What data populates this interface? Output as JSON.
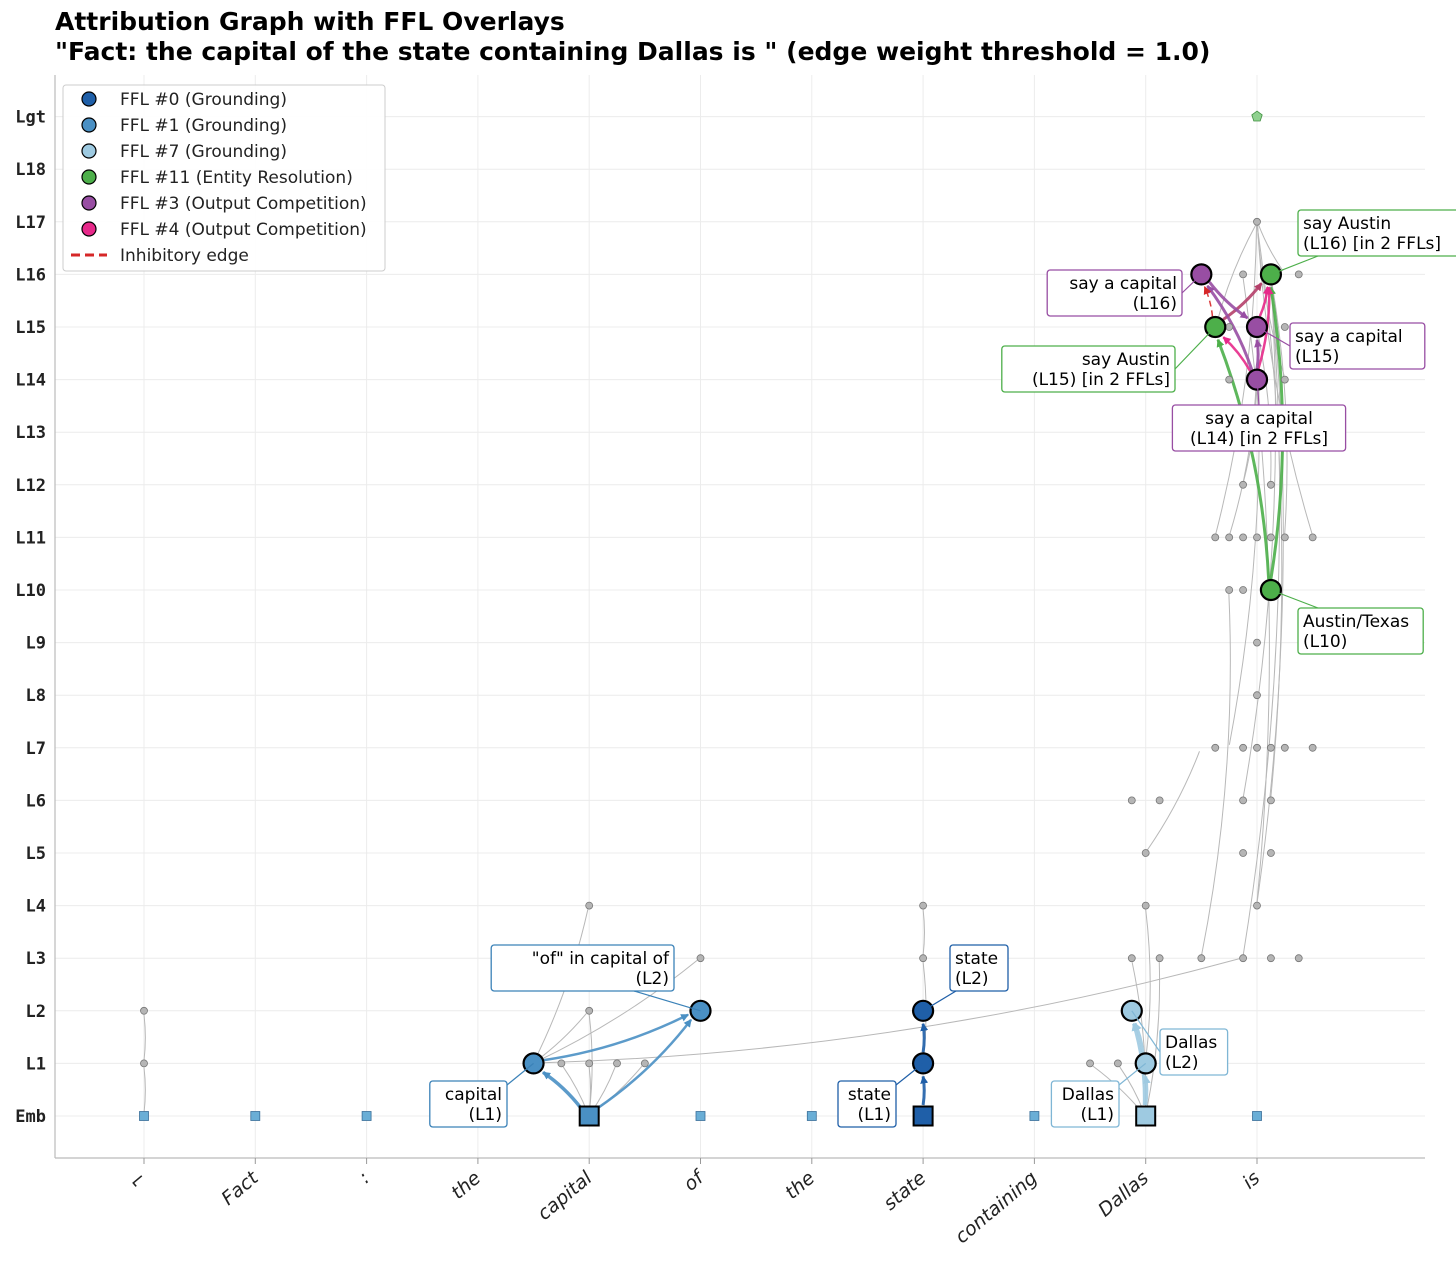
{
  "title_line1": "Attribution Graph with FFL Overlays",
  "title_line2": "\"Fact: the capital of the state containing Dallas is \"    (edge weight threshold = 1.0)",
  "chart_data": {
    "type": "graph",
    "y_levels": [
      "Emb",
      "L1",
      "L2",
      "L3",
      "L4",
      "L5",
      "L6",
      "L7",
      "L8",
      "L9",
      "L10",
      "L11",
      "L12",
      "L13",
      "L14",
      "L15",
      "L16",
      "L17",
      "L18",
      "Lgt"
    ],
    "tokens": [
      "⌐",
      "Fact",
      ":",
      "the",
      "capital",
      "of",
      "the",
      "state",
      "containing",
      "Dallas",
      "is"
    ],
    "colors": {
      "ffl0": "#1f5fa8",
      "ffl1": "#4a90c4",
      "ffl7": "#9ecae1",
      "ffl11": "#4daf4a",
      "ffl3": "#984ea3",
      "ffl4": "#e7298a",
      "inhib": "#d62728",
      "gray": "#b0b0b0"
    },
    "legend": [
      {
        "label": "FFL #0 (Grounding)",
        "color": "#1f5fa8",
        "kind": "dot"
      },
      {
        "label": "FFL #1 (Grounding)",
        "color": "#4a90c4",
        "kind": "dot"
      },
      {
        "label": "FFL #7 (Grounding)",
        "color": "#9ecae1",
        "kind": "dot"
      },
      {
        "label": "FFL #11 (Entity Resolution)",
        "color": "#4daf4a",
        "kind": "dot"
      },
      {
        "label": "FFL #3 (Output Competition)",
        "color": "#984ea3",
        "kind": "dot"
      },
      {
        "label": "FFL #4 (Output Competition)",
        "color": "#e7298a",
        "kind": "dot"
      },
      {
        "label": "Inhibitory edge",
        "color": "#d62728",
        "kind": "dash"
      }
    ],
    "highlight_nodes": [
      {
        "id": "cap_emb",
        "x": 4,
        "layer": 0,
        "shape": "square",
        "color": "#4a90c4"
      },
      {
        "id": "cap_l1",
        "x": 3.5,
        "layer": 1,
        "color": "#4a90c4"
      },
      {
        "id": "of_l2",
        "x": 5,
        "layer": 2,
        "color": "#4a90c4"
      },
      {
        "id": "st_emb",
        "x": 7,
        "layer": 0,
        "shape": "square",
        "color": "#1f5fa8"
      },
      {
        "id": "st_l1",
        "x": 7,
        "layer": 1,
        "color": "#1f5fa8"
      },
      {
        "id": "st_l2",
        "x": 7,
        "layer": 2,
        "color": "#1f5fa8"
      },
      {
        "id": "da_emb",
        "x": 9,
        "layer": 0,
        "shape": "square",
        "color": "#9ecae1"
      },
      {
        "id": "da_l1",
        "x": 9,
        "layer": 1,
        "color": "#9ecae1"
      },
      {
        "id": "da_l2",
        "x": 8.875,
        "layer": 2,
        "color": "#9ecae1"
      },
      {
        "id": "aus_l10",
        "x": 10.125,
        "layer": 10,
        "color": "#4daf4a"
      },
      {
        "id": "aus_l15",
        "x": 9.625,
        "layer": 15,
        "color": "#4daf4a"
      },
      {
        "id": "aus_l16",
        "x": 10.125,
        "layer": 16,
        "color": "#4daf4a"
      },
      {
        "id": "cap_l14",
        "x": 10,
        "layer": 14,
        "color": "#984ea3"
      },
      {
        "id": "cap_l15",
        "x": 10,
        "layer": 15,
        "color": "#984ea3"
      },
      {
        "id": "cap_l16",
        "x": 9.5,
        "layer": 16,
        "color": "#984ea3"
      }
    ],
    "highlight_edges": [
      {
        "from": "cap_emb",
        "to": "cap_l1",
        "color": "#4a90c4",
        "w": 3.5
      },
      {
        "from": "cap_emb",
        "to": "of_l2",
        "color": "#4a90c4",
        "w": 2.5
      },
      {
        "from": "cap_l1",
        "to": "of_l2",
        "color": "#4a90c4",
        "w": 2.5
      },
      {
        "from": "st_emb",
        "to": "st_l1",
        "color": "#1f5fa8",
        "w": 3
      },
      {
        "from": "st_l1",
        "to": "st_l2",
        "color": "#1f5fa8",
        "w": 3
      },
      {
        "from": "da_emb",
        "to": "da_l1",
        "color": "#9ecae1",
        "w": 3
      },
      {
        "from": "da_emb",
        "to": "da_l2",
        "color": "#9ecae1",
        "w": 3
      },
      {
        "from": "da_l1",
        "to": "da_l2",
        "color": "#9ecae1",
        "w": 3
      },
      {
        "from": "aus_l10",
        "to": "aus_l15",
        "color": "#4daf4a",
        "w": 3
      },
      {
        "from": "aus_l10",
        "to": "aus_l16",
        "color": "#4daf4a",
        "w": 3
      },
      {
        "from": "aus_l15",
        "to": "aus_l16",
        "color": "#b5406a",
        "w": 3
      },
      {
        "from": "cap_l14",
        "to": "aus_l15",
        "color": "#e7298a",
        "w": 2.5
      },
      {
        "from": "cap_l14",
        "to": "aus_l16",
        "color": "#e7298a",
        "w": 2.5
      },
      {
        "from": "cap_l15",
        "to": "aus_l16",
        "color": "#e7298a",
        "w": 2.5
      },
      {
        "from": "cap_l14",
        "to": "cap_l16",
        "color": "#984ea3",
        "w": 3
      },
      {
        "from": "cap_l14",
        "to": "cap_l15",
        "color": "#984ea3",
        "w": 3
      },
      {
        "from": "cap_l16",
        "to": "cap_l15",
        "color": "#984ea3",
        "w": 3
      },
      {
        "from": "aus_l15",
        "to": "cap_l16",
        "color": "#d62728",
        "w": 1.5,
        "dash": true
      }
    ],
    "gray_nodes": [
      [
        0,
        2
      ],
      [
        0,
        1
      ],
      [
        4,
        4
      ],
      [
        4,
        2
      ],
      [
        4,
        1
      ],
      [
        3.75,
        1
      ],
      [
        4.25,
        1
      ],
      [
        4.5,
        1
      ],
      [
        5,
        3
      ],
      [
        7,
        4
      ],
      [
        7,
        3
      ],
      [
        8.5,
        1
      ],
      [
        8.75,
        1
      ],
      [
        8.875,
        3
      ],
      [
        9.125,
        3
      ],
      [
        9,
        4
      ],
      [
        9,
        5
      ],
      [
        8.875,
        6
      ],
      [
        9.125,
        6
      ],
      [
        9.5,
        3
      ],
      [
        9.875,
        3
      ],
      [
        10.125,
        3
      ],
      [
        10.375,
        3
      ],
      [
        9.625,
        7
      ],
      [
        9.875,
        7
      ],
      [
        10,
        7
      ],
      [
        10.125,
        7
      ],
      [
        10.25,
        7
      ],
      [
        10.5,
        7
      ],
      [
        10,
        9
      ],
      [
        10,
        8
      ],
      [
        10,
        4
      ],
      [
        9.875,
        5
      ],
      [
        10.125,
        5
      ],
      [
        9.875,
        6
      ],
      [
        10.125,
        6
      ],
      [
        9.75,
        10
      ],
      [
        9.875,
        10
      ],
      [
        9.625,
        11
      ],
      [
        9.75,
        11
      ],
      [
        9.875,
        11
      ],
      [
        10,
        11
      ],
      [
        10.125,
        11
      ],
      [
        10.25,
        11
      ],
      [
        10.5,
        11
      ],
      [
        9.875,
        12
      ],
      [
        10.125,
        12
      ],
      [
        9.75,
        14
      ],
      [
        10.25,
        14
      ],
      [
        9.75,
        15
      ],
      [
        10.25,
        15
      ],
      [
        9.875,
        16
      ],
      [
        10.375,
        16
      ],
      [
        10,
        17
      ]
    ],
    "gray_edges": [
      [
        [
          0,
          1
        ],
        [
          0,
          2
        ]
      ],
      [
        [
          0,
          0
        ],
        [
          0,
          1
        ]
      ],
      [
        [
          3.5,
          1
        ],
        [
          4,
          4
        ]
      ],
      [
        [
          3.5,
          1
        ],
        [
          4,
          2
        ]
      ],
      [
        [
          3.5,
          1
        ],
        [
          5,
          3
        ]
      ],
      [
        [
          4,
          0
        ],
        [
          3.75,
          1
        ]
      ],
      [
        [
          4,
          0
        ],
        [
          4,
          1
        ]
      ],
      [
        [
          4,
          0
        ],
        [
          4.25,
          1
        ]
      ],
      [
        [
          4,
          0
        ],
        [
          4.5,
          1
        ]
      ],
      [
        [
          4,
          0
        ],
        [
          4,
          2
        ]
      ],
      [
        [
          7,
          1
        ],
        [
          7,
          3
        ]
      ],
      [
        [
          7,
          3
        ],
        [
          7,
          4
        ]
      ],
      [
        [
          3.5,
          1
        ],
        [
          9.875,
          3
        ]
      ],
      [
        [
          9,
          0
        ],
        [
          8.875,
          3
        ]
      ],
      [
        [
          9,
          0
        ],
        [
          9.125,
          3
        ]
      ],
      [
        [
          9,
          1
        ],
        [
          9,
          4
        ]
      ],
      [
        [
          9,
          0
        ],
        [
          8.5,
          1
        ]
      ],
      [
        [
          9,
          0
        ],
        [
          8.75,
          1
        ]
      ],
      [
        [
          9,
          5
        ],
        [
          9.5,
          7
        ]
      ],
      [
        [
          9.5,
          3
        ],
        [
          9.75,
          10
        ]
      ],
      [
        [
          9.875,
          3
        ],
        [
          10.125,
          16
        ]
      ],
      [
        [
          10,
          4
        ],
        [
          10.125,
          16
        ]
      ],
      [
        [
          10,
          4
        ],
        [
          9.875,
          16
        ]
      ],
      [
        [
          10.125,
          6
        ],
        [
          10,
          17
        ]
      ],
      [
        [
          9.875,
          6
        ],
        [
          10.125,
          16
        ]
      ],
      [
        [
          9.75,
          7
        ],
        [
          10,
          15
        ]
      ],
      [
        [
          9.625,
          11
        ],
        [
          10,
          17
        ]
      ],
      [
        [
          10,
          17
        ],
        [
          10.5,
          11
        ]
      ],
      [
        [
          10,
          17
        ],
        [
          10.25,
          16
        ]
      ],
      [
        [
          10,
          17
        ],
        [
          9.625,
          15
        ]
      ],
      [
        [
          10,
          17
        ],
        [
          10.25,
          14
        ]
      ],
      [
        [
          9.75,
          11
        ],
        [
          10,
          14
        ]
      ],
      [
        [
          9.875,
          12
        ],
        [
          10,
          14
        ]
      ],
      [
        [
          10.125,
          12
        ],
        [
          10,
          15
        ]
      ],
      [
        [
          10.25,
          11
        ],
        [
          10.125,
          16
        ]
      ]
    ],
    "emb_markers": [
      0,
      1,
      2,
      5,
      6,
      8,
      10
    ],
    "logit_marker": {
      "x": 10,
      "layer": 19
    },
    "annotations": [
      {
        "text": [
          "capital",
          "(L1)"
        ],
        "node": "cap_l1",
        "align": "right",
        "color": "#3b82b8"
      },
      {
        "text": [
          "\"of\" in capital of",
          "(L2)"
        ],
        "node": "of_l2",
        "align": "right",
        "color": "#3b82b8"
      },
      {
        "text": [
          "state",
          "(L1)"
        ],
        "node": "st_l1",
        "align": "right",
        "color": "#1f5fa8"
      },
      {
        "text": [
          "state",
          "(L2)"
        ],
        "node": "st_l2",
        "align": "left",
        "color": "#1f5fa8"
      },
      {
        "text": [
          "Dallas",
          "(L1)"
        ],
        "node": "da_l1",
        "align": "right",
        "color": "#7fb6d5"
      },
      {
        "text": [
          "Dallas",
          "(L2)"
        ],
        "node": "da_l2",
        "align": "left",
        "color": "#7fb6d5"
      },
      {
        "text": [
          "Austin/Texas",
          "(L10)"
        ],
        "node": "aus_l10",
        "align": "left",
        "color": "#4daf4a"
      },
      {
        "text": [
          "say Austin",
          "(L15) [in 2 FFLs]"
        ],
        "node": "aus_l15",
        "align": "right",
        "color": "#4daf4a"
      },
      {
        "text": [
          "say Austin",
          "(L16) [in 2 FFLs]"
        ],
        "node": "aus_l16",
        "align": "left",
        "color": "#4daf4a"
      },
      {
        "text": [
          "say a capital",
          "(L14) [in 2 FFLs]"
        ],
        "node": "cap_l14",
        "align": "center",
        "color": "#984ea3"
      },
      {
        "text": [
          "say a capital",
          "(L15)"
        ],
        "node": "cap_l15",
        "align": "left",
        "color": "#984ea3"
      },
      {
        "text": [
          "say a capital",
          "(L16)"
        ],
        "node": "cap_l16",
        "align": "right",
        "color": "#984ea3"
      }
    ]
  }
}
